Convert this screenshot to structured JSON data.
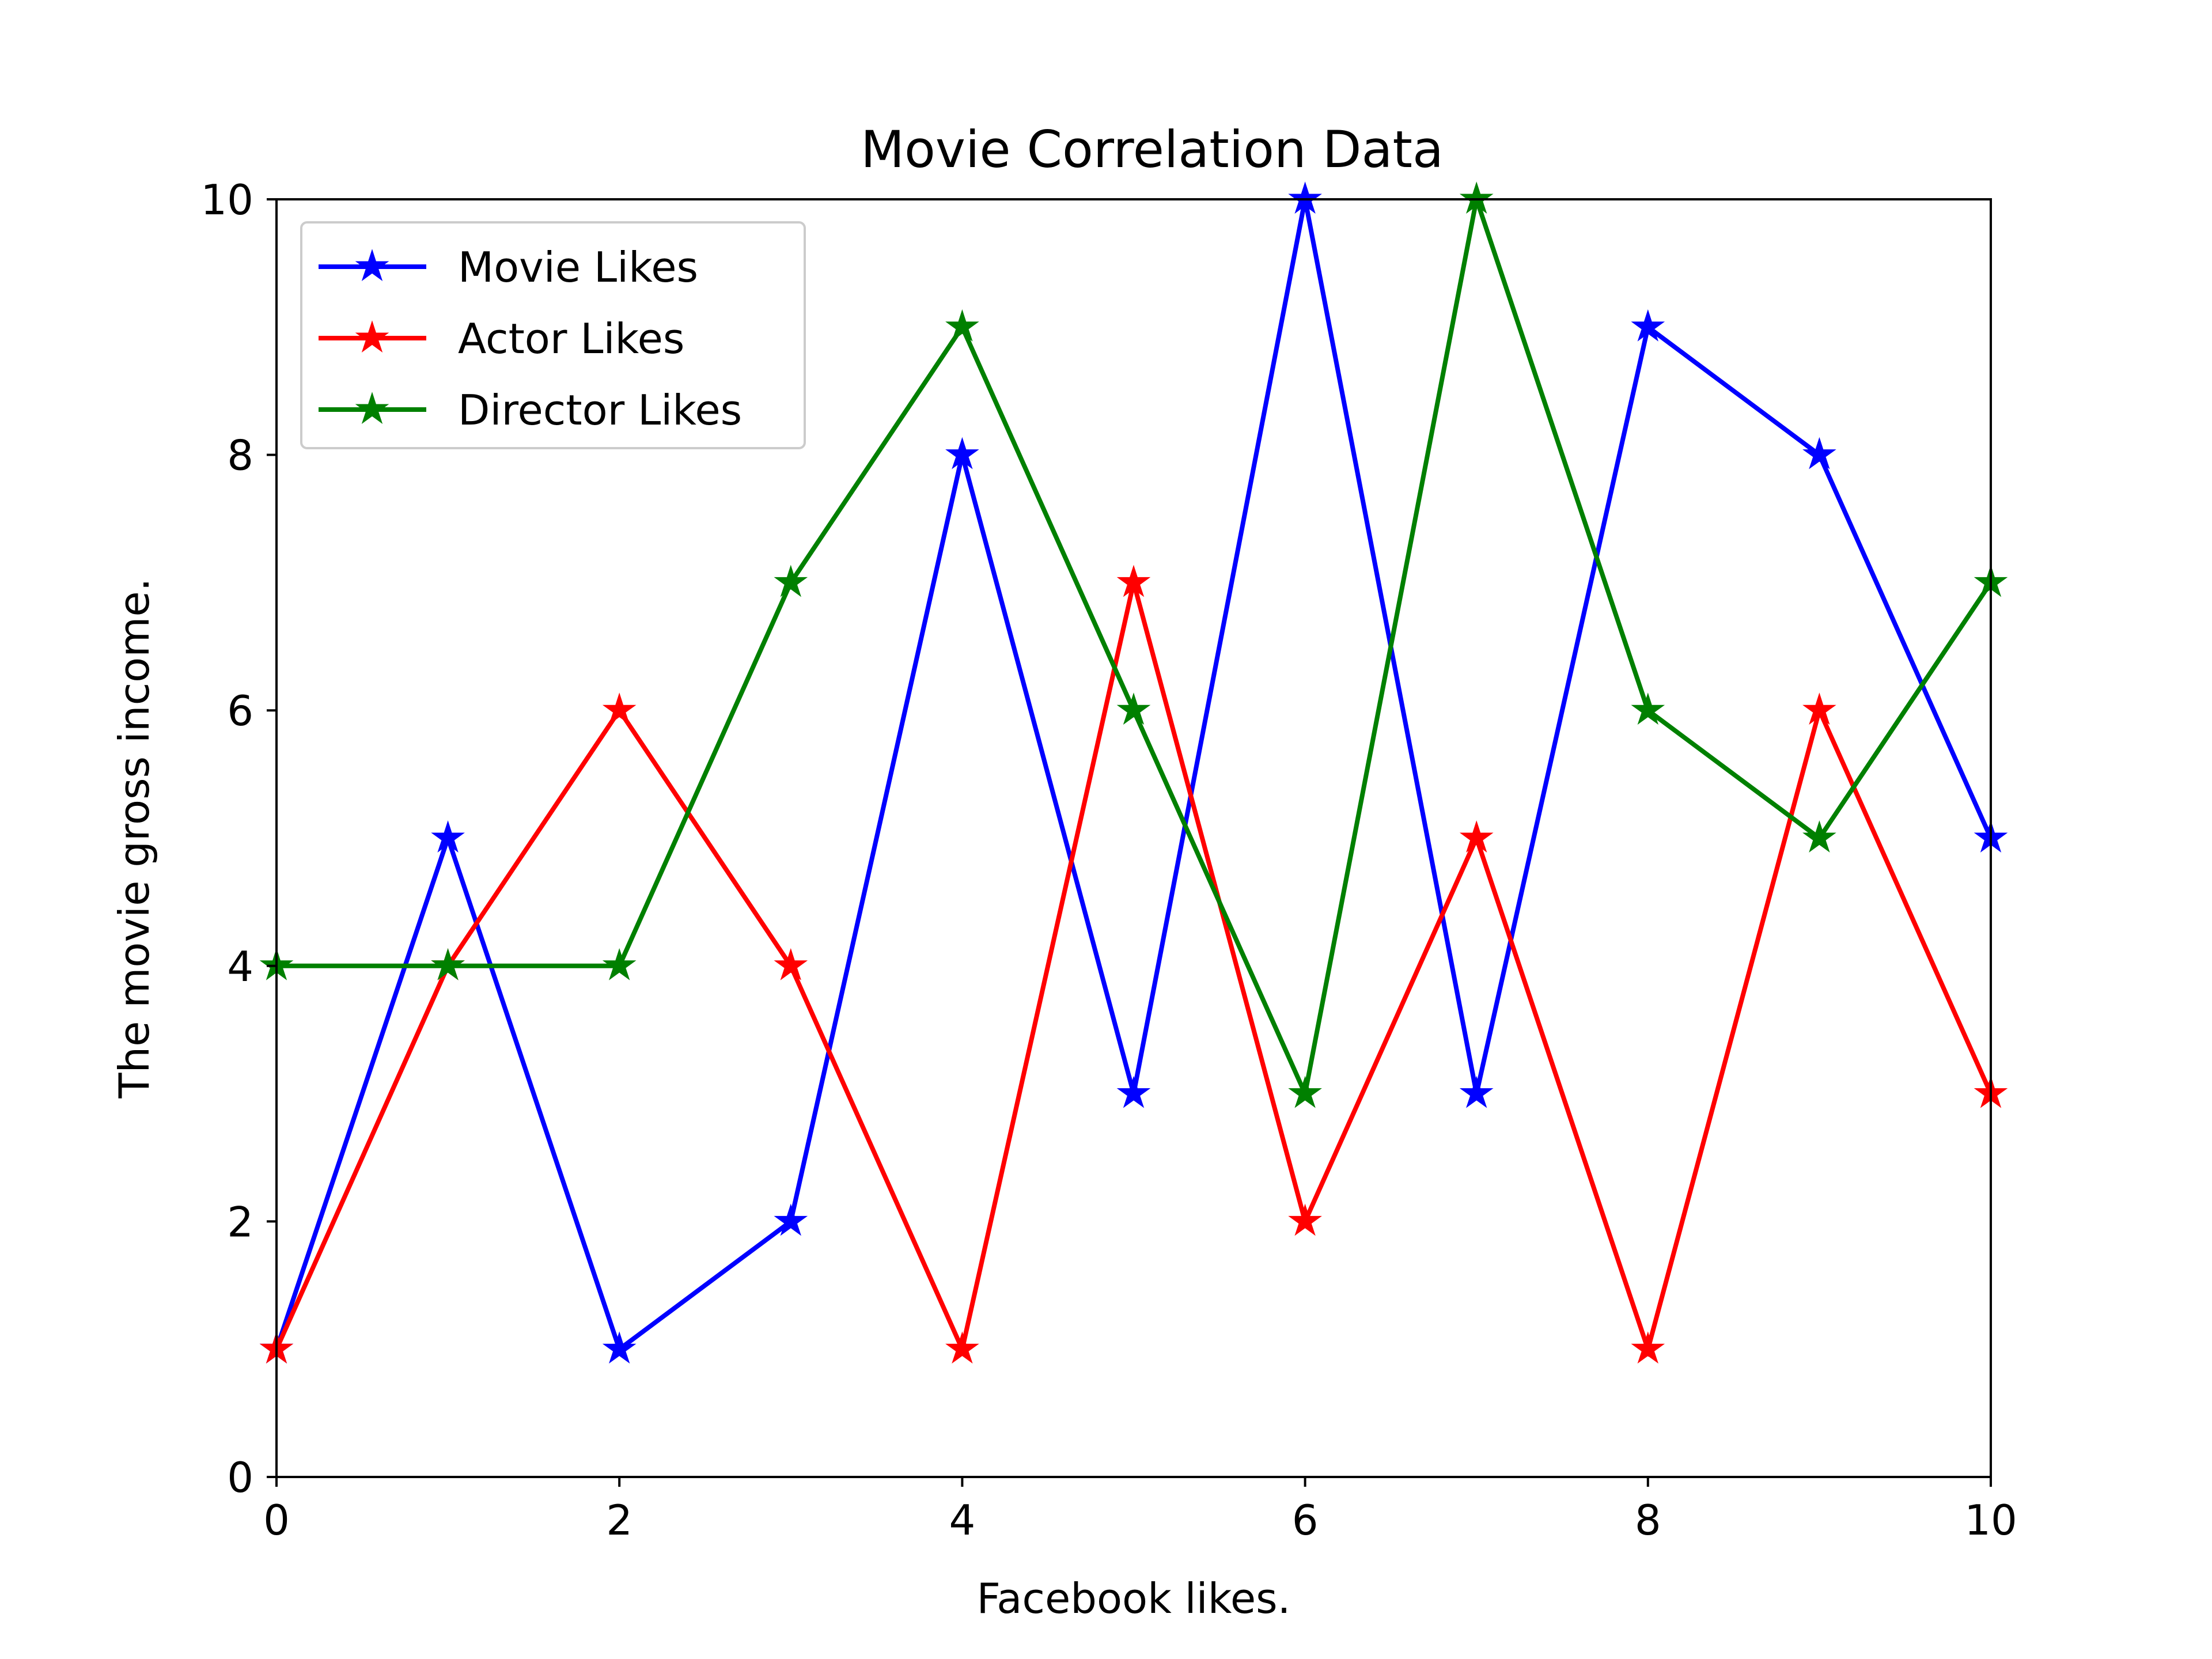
{
  "chart_data": {
    "type": "line",
    "title": "Movie Correlation Data",
    "xlabel": "Facebook likes.",
    "ylabel": "The movie gross income.",
    "xlim": [
      0,
      10
    ],
    "ylim": [
      0,
      10
    ],
    "x_ticks": [
      "0",
      "2",
      "4",
      "6",
      "8",
      "10"
    ],
    "y_ticks": [
      "0",
      "2",
      "4",
      "6",
      "8",
      "10"
    ],
    "grid": false,
    "legend_position": "top-left",
    "marker": "star",
    "x": [
      0,
      1,
      2,
      3,
      4,
      5,
      6,
      7,
      8,
      9,
      10
    ],
    "series": [
      {
        "name": "Movie Likes",
        "color": "#0000ff",
        "values": [
          1,
          5,
          1,
          2,
          8,
          3,
          10,
          3,
          9,
          8,
          5
        ]
      },
      {
        "name": "Actor Likes",
        "color": "#ff0000",
        "values": [
          1,
          4,
          6,
          4,
          1,
          7,
          2,
          5,
          1,
          6,
          3
        ]
      },
      {
        "name": "Director Likes",
        "color": "#008000",
        "values": [
          4,
          4,
          4,
          7,
          9,
          6,
          3,
          10,
          6,
          5,
          7
        ]
      }
    ]
  }
}
